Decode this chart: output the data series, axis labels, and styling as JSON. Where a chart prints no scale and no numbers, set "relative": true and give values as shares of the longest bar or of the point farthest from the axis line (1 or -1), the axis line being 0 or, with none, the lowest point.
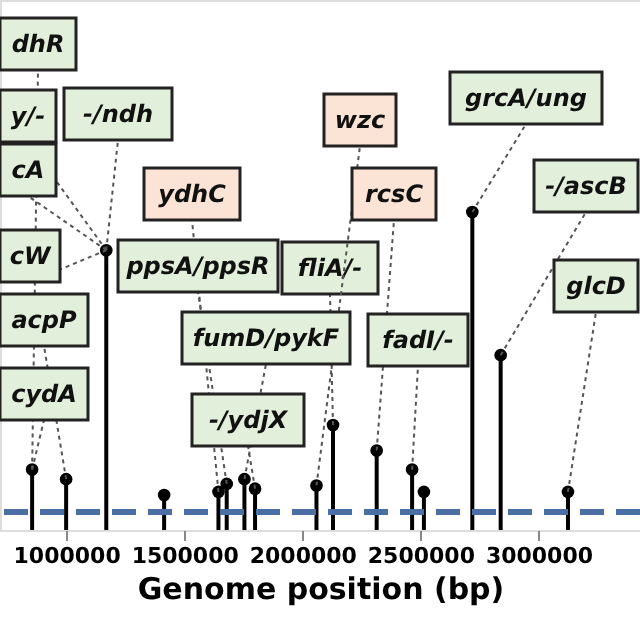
{
  "chart_data": {
    "type": "lollipop",
    "relative": true,
    "xlabel": "Genome position (bp)",
    "xlim": [
      720000,
      3430000
    ],
    "xticks": [
      1000000,
      1500000,
      2000000,
      2500000,
      3000000
    ],
    "marker": "circle",
    "x": [
      856000,
      1000000,
      1170000,
      1415000,
      1645000,
      1680000,
      1755000,
      1800000,
      2060000,
      2130000,
      2315000,
      2465000,
      2515000,
      2720000,
      2840000,
      3125000
    ],
    "series": [
      {
        "color": "#000000",
        "values": [
          0.19,
          0.16,
          0.88,
          0.11,
          0.12,
          0.145,
          0.16,
          0.13,
          0.14,
          0.33,
          0.25,
          0.19,
          0.12,
          1,
          0.55,
          0.12
        ]
      }
    ],
    "ref_lines": [
      {
        "axis": "y",
        "value": 0.057,
        "color": "#4a6fa5",
        "line_style": "dashed"
      }
    ],
    "annotations": [
      {
        "text": "dhR",
        "x": 856000,
        "y": 0.19
      },
      {
        "text": "y/-",
        "x": 1170000,
        "y": 0.88
      },
      {
        "text": "-/ndh",
        "x": 1170000,
        "y": 0.88
      },
      {
        "text": "cA",
        "x": 1170000,
        "y": 0.88
      },
      {
        "text": "ydhC",
        "x": 1645000,
        "y": 0.12
      },
      {
        "text": "cW",
        "x": 1170000,
        "y": 0.88
      },
      {
        "text": "ppsA/ppsR",
        "x": 1680000,
        "y": 0.145
      },
      {
        "text": "fliA/-",
        "x": 2130000,
        "y": 0.33
      },
      {
        "text": "wzc",
        "x": 2060000,
        "y": 0.14
      },
      {
        "text": "rcsC",
        "x": 2315000,
        "y": 0.25
      },
      {
        "text": "grcA/ung",
        "x": 2720000,
        "y": 1
      },
      {
        "text": "-/ascB",
        "x": 2840000,
        "y": 0.55
      },
      {
        "text": "glcD",
        "x": 3125000,
        "y": 0.12
      },
      {
        "text": "acpP",
        "x": 1000000,
        "y": 0.16
      },
      {
        "text": "fumD/pykF",
        "x": 1755000,
        "y": 0.16
      },
      {
        "text": "cydA",
        "x": 856000,
        "y": 0.19
      },
      {
        "text": "-/ydjX",
        "x": 1800000,
        "y": 0.13
      },
      {
        "text": "fadI/-",
        "x": 2465000,
        "y": 0.19
      }
    ]
  }
}
